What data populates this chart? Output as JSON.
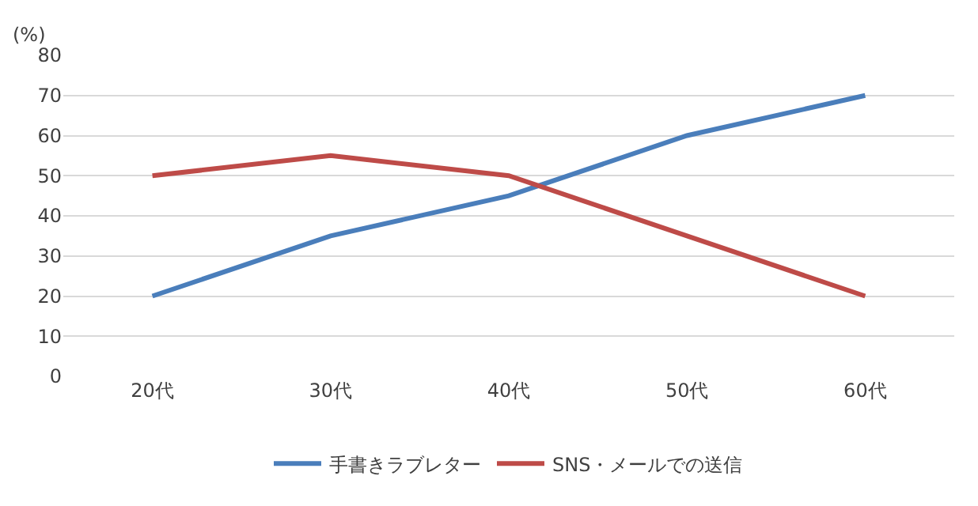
{
  "chart_data": {
    "type": "line",
    "ylabel": "(%)",
    "categories": [
      "20代",
      "30代",
      "40代",
      "50代",
      "60代"
    ],
    "series": [
      {
        "name": "手書きラブレター",
        "color": "#4a7ebb",
        "values": [
          20,
          35,
          45,
          60,
          70
        ]
      },
      {
        "name": "SNS・メールでの送信",
        "color": "#be4b48",
        "values": [
          50,
          55,
          50,
          35,
          20
        ]
      }
    ],
    "ylim": [
      0,
      80
    ],
    "yticks": [
      0,
      10,
      20,
      30,
      40,
      50,
      60,
      70,
      80
    ],
    "grid": "y",
    "legend": "bottom",
    "marker": "none",
    "line_style": "solid"
  }
}
